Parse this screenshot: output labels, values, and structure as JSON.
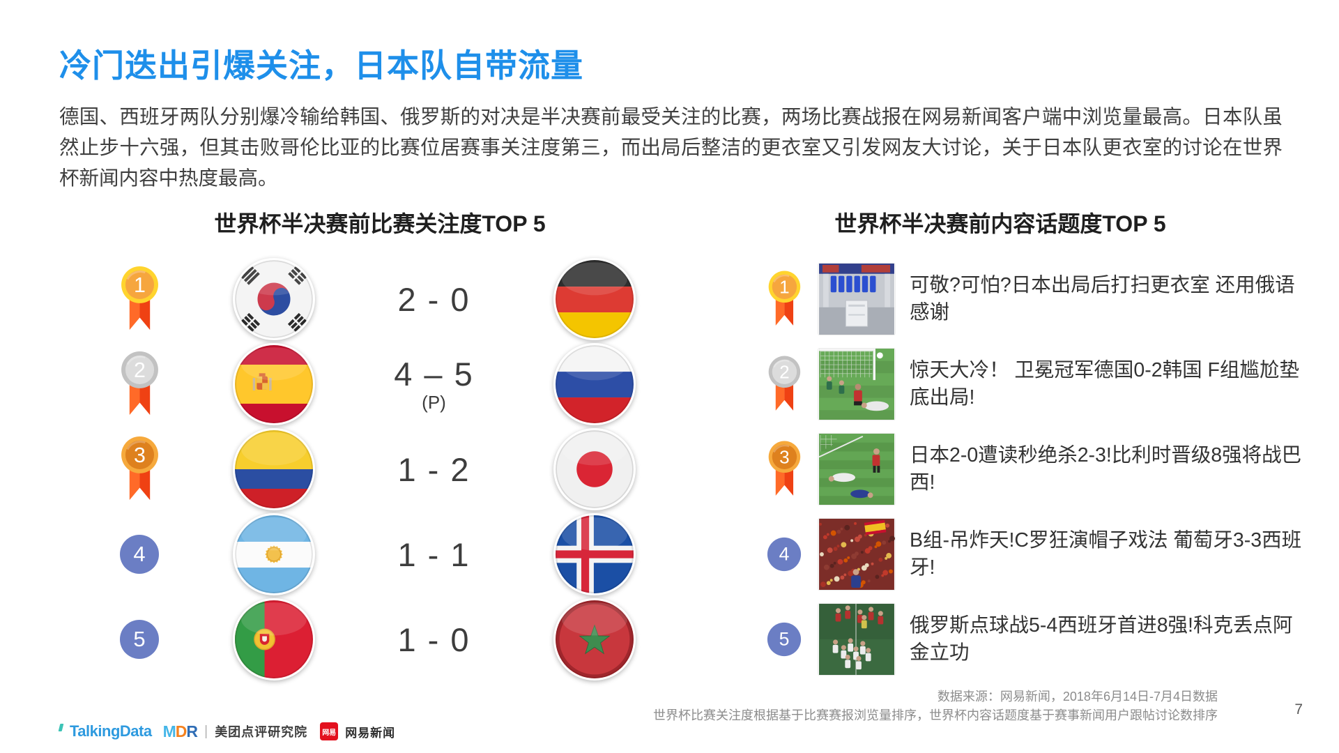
{
  "slide": {
    "title": "冷门迭出引爆关注，日本队自带流量",
    "paragraph": "德国、西班牙两队分别爆冷输给韩国、俄罗斯的对决是半决赛前最受关注的比赛，两场比赛战报在网易新闻客户端中浏览量最高。日本队虽然止步十六强，但其击败哥伦比亚的比赛位居赛事关注度第三，而出局后整洁的更衣室又引发网友大讨论，关于日本队更衣室的讨论在世界杯新闻内容中热度最高。",
    "page_number": "7"
  },
  "left_panel": {
    "header": "世界杯半决赛前比赛关注度TOP 5",
    "rows": [
      {
        "rank": "1",
        "medal": "gold",
        "home": "south-korea",
        "away": "germany",
        "score": "2 - 0",
        "note": ""
      },
      {
        "rank": "2",
        "medal": "silver",
        "home": "spain",
        "away": "russia",
        "score": "4 – 5",
        "note": "(P)"
      },
      {
        "rank": "3",
        "medal": "bronze",
        "home": "colombia",
        "away": "japan",
        "score": "1 - 2",
        "note": ""
      },
      {
        "rank": "4",
        "medal": "plain",
        "home": "argentina",
        "away": "iceland",
        "score": "1 - 1",
        "note": ""
      },
      {
        "rank": "5",
        "medal": "plain",
        "home": "portugal",
        "away": "morocco",
        "score": "1 - 0",
        "note": ""
      }
    ]
  },
  "right_panel": {
    "header": "世界杯半决赛前内容话题度TOP 5",
    "rows": [
      {
        "rank": "1",
        "medal": "gold",
        "thumb": "locker-room",
        "headline": "可敬?可怕?日本出局后打扫更衣室 还用俄语感谢"
      },
      {
        "rank": "2",
        "medal": "silver",
        "thumb": "goal-save",
        "headline": "惊天大冷！ 卫冕冠军德国0-2韩国 F组尴尬垫底出局!"
      },
      {
        "rank": "3",
        "medal": "bronze",
        "thumb": "pile-on-grass",
        "headline": "日本2-0遭读秒绝杀2-3!比利时晋级8强将战巴西!"
      },
      {
        "rank": "4",
        "medal": "plain",
        "thumb": "fans-crowd",
        "headline": "B组-吊炸天!C罗狂演帽子戏法 葡萄牙3-3西班牙!"
      },
      {
        "rank": "5",
        "medal": "plain",
        "thumb": "celebration",
        "headline": "俄罗斯点球战5-4西班牙首进8强!科克丢点阿金立功"
      }
    ]
  },
  "footer": {
    "source_line1": "数据来源：网易新闻，2018年6月14日-7月4日数据",
    "source_line2": "世界杯比赛关注度根据基于比赛赛报浏览量排序，世界杯内容话题度基于赛事新闻用户跟帖讨论数排序",
    "logos": {
      "talkingdata": "TalkingData",
      "mdr": "MDR",
      "meituan": "美团点评研究院",
      "netease_badge": "网易",
      "netease": "网易新闻"
    }
  },
  "colors": {
    "title_blue": "#1E8FEA",
    "rank_circle_blue": "#6B7EC4",
    "medal_gold": "#FFD42E",
    "medal_silver": "#C2C2C2",
    "medal_bronze": "#F6A93C",
    "ribbon_orange": "#FF6A28"
  }
}
